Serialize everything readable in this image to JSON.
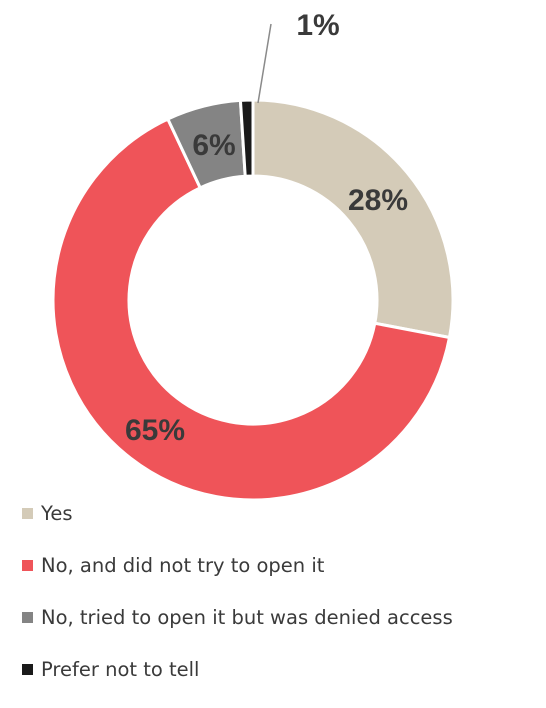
{
  "chart_data": {
    "type": "pie",
    "donut": true,
    "categories": [
      "Yes",
      "No, and did not try to open it",
      "No, tried to open it but was denied access",
      "Prefer not to tell"
    ],
    "values": [
      28,
      65,
      6,
      1
    ],
    "value_labels": [
      "28%",
      "65%",
      "6%",
      "1%"
    ],
    "colors": [
      "#d4cbb8",
      "#ef5459",
      "#848484",
      "#1a1a1a"
    ],
    "legend_position": "bottom-left"
  }
}
